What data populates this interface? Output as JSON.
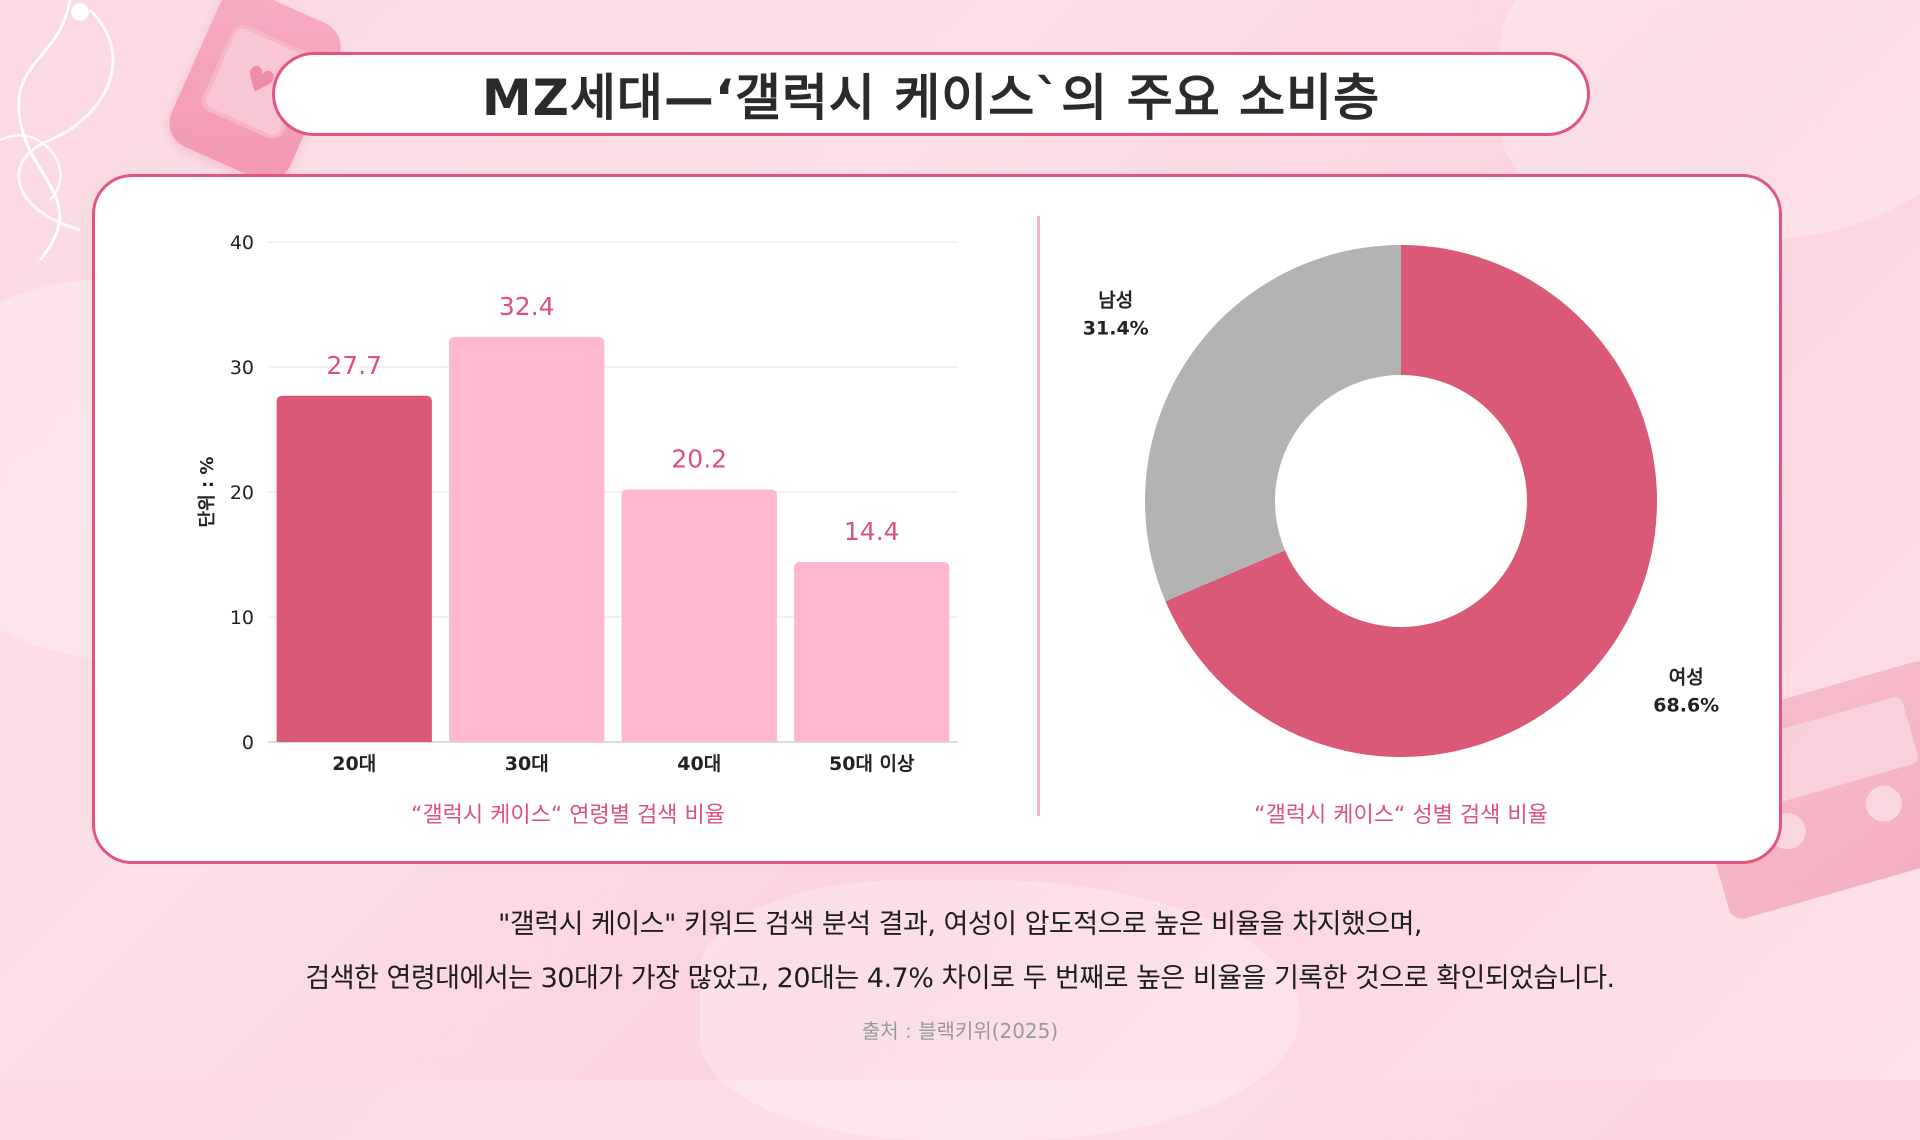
{
  "title": "MZ세대—‘갤럭시 케이스`의 주요 소비층",
  "colors": {
    "accent": "#e3557b",
    "bar_primary": "#d95977",
    "bar_secondary": "#ffb8d0",
    "pie_female": "#d95977",
    "pie_male": "#b3b3b3",
    "value_label": "#e0517a"
  },
  "chart_data": [
    {
      "type": "bar",
      "title": "“갤럭시 케이스“ 연령별 검색 비율",
      "ylabel": "단위 : %",
      "xlabel": "",
      "categories": [
        "20대",
        "30대",
        "40대",
        "50대 이상"
      ],
      "values": [
        27.7,
        32.4,
        20.2,
        14.4
      ],
      "value_labels": [
        "27.7",
        "32.4",
        "20.2",
        "14.4"
      ],
      "ylim": [
        0,
        40
      ],
      "yticks": [
        "0",
        "10",
        "20",
        "30",
        "40"
      ],
      "grid": true
    },
    {
      "type": "pie",
      "title": "“갤럭시 케이스“ 성별 검색 비율",
      "donut": true,
      "slices": [
        {
          "name": "여성",
          "value": 68.6,
          "label": "68.6%"
        },
        {
          "name": "남성",
          "value": 31.4,
          "label": "31.4%"
        }
      ]
    }
  ],
  "summary": {
    "line1": "\"갤럭시 케이스\" 키워드 검색 분석 결과, 여성이 압도적으로 높은 비율을 차지했으며,",
    "line2": "검색한 연령대에서는 30대가 가장 많았고, 20대는 4.7% 차이로 두 번째로 높은 비율을 기록한 것으로 확인되었습니다."
  },
  "source": "출처 : 블랙키위(2025)"
}
